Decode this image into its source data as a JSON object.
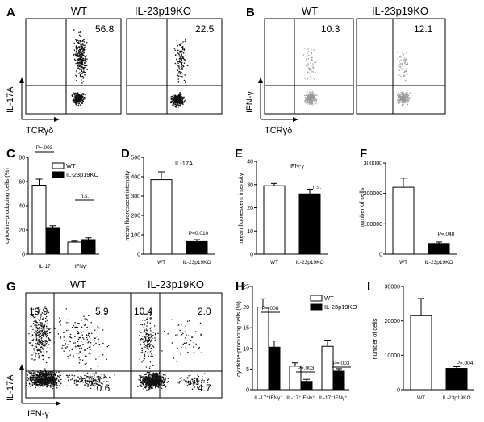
{
  "panels": {
    "A": {
      "label": "A",
      "titles": [
        "WT",
        "IL-23p19KO"
      ],
      "values": [
        "56.8",
        "22.5"
      ],
      "ylabel": "IL-17A",
      "xlabel": "TCRγδ"
    },
    "B": {
      "label": "B",
      "titles": [
        "WT",
        "IL-23p19KO"
      ],
      "values": [
        "10.3",
        "12.1"
      ],
      "ylabel": "IFN-γ",
      "xlabel": "TCRγδ"
    },
    "C": {
      "label": "C"
    },
    "D": {
      "label": "D"
    },
    "E": {
      "label": "E"
    },
    "F": {
      "label": "F"
    },
    "G": {
      "label": "G",
      "titles": [
        "WT",
        "IL-23p19KO"
      ],
      "wt": {
        "ul": "19.9",
        "ur": "5.9",
        "lr": "10.6"
      },
      "ko": {
        "ul": "10.4",
        "ur": "2.0",
        "lr": "4.7"
      },
      "ylabel": "IL-17A",
      "xlabel": "IFN-γ"
    },
    "H": {
      "label": "H"
    },
    "I": {
      "label": "I"
    }
  },
  "chart_data": [
    {
      "id": "C",
      "type": "bar",
      "ylabel": "cytokine-producing cells (%)",
      "ylim": [
        0,
        80
      ],
      "yticks": [
        0,
        20,
        40,
        60,
        80
      ],
      "categories": [
        "IL-17⁺",
        "IFNγ⁺"
      ],
      "series": [
        {
          "name": "WT",
          "color": "#ffffff",
          "values": [
            57,
            10
          ],
          "errors": [
            5,
            0.8
          ]
        },
        {
          "name": "IL-23p19KO",
          "color": "#000000",
          "values": [
            22,
            12
          ],
          "errors": [
            1.5,
            1.5
          ]
        }
      ],
      "annotations": [
        "P=.003",
        "n.s."
      ],
      "legend": "top-right"
    },
    {
      "id": "D",
      "type": "bar",
      "title": "IL-17A",
      "ylabel": "mean fluorescent intensity",
      "ylim": [
        0,
        500
      ],
      "yticks": [
        0,
        100,
        200,
        300,
        400,
        500
      ],
      "categories": [
        "WT",
        "IL-23p19KO"
      ],
      "series": [
        {
          "values": [
            385,
            65
          ],
          "errors": [
            40,
            10
          ],
          "colors": [
            "#ffffff",
            "#000000"
          ]
        }
      ],
      "annotations": [
        "P=0.010"
      ]
    },
    {
      "id": "E",
      "type": "bar",
      "title": "IFN-γ",
      "ylabel": "mean fluorescent intensity",
      "ylim": [
        0,
        40
      ],
      "yticks": [
        0,
        10,
        20,
        30,
        40
      ],
      "categories": [
        "WT",
        "IL-23p19KO"
      ],
      "series": [
        {
          "values": [
            29.5,
            26
          ],
          "errors": [
            1,
            2
          ],
          "colors": [
            "#ffffff",
            "#000000"
          ]
        }
      ],
      "annotations": [
        "n.s."
      ]
    },
    {
      "id": "F",
      "type": "bar",
      "ylabel": "number of cells",
      "ylim": [
        0,
        300000
      ],
      "yticks": [
        0,
        100000,
        200000,
        300000
      ],
      "categories": [
        "WT",
        "IL-23p19KO"
      ],
      "series": [
        {
          "values": [
            220000,
            35000
          ],
          "errors": [
            30000,
            5000
          ],
          "colors": [
            "#ffffff",
            "#000000"
          ]
        }
      ],
      "annotations": [
        "P=.048"
      ]
    },
    {
      "id": "H",
      "type": "bar",
      "ylabel": "cytokine-producing cells (%)",
      "ylim": [
        0,
        25
      ],
      "yticks": [
        0,
        5,
        10,
        15,
        20,
        25
      ],
      "categories": [
        "IL-17⁺IFNγ⁻",
        "IL-17⁺IFNγ⁺",
        "IL-17⁻IFNγ⁺"
      ],
      "series": [
        {
          "name": "WT",
          "color": "#ffffff",
          "values": [
            20,
            5.7,
            10.5
          ],
          "errors": [
            2,
            0.8,
            1.5
          ]
        },
        {
          "name": "IL-23p19KO",
          "color": "#000000",
          "values": [
            10.3,
            2,
            4.5
          ],
          "errors": [
            1.5,
            0.5,
            0.6
          ]
        }
      ],
      "annotations": [
        "P=.008",
        "P=.003",
        "P=.003"
      ],
      "legend": "top-right"
    },
    {
      "id": "I",
      "type": "bar",
      "ylabel": "number of cells",
      "ylim": [
        0,
        30000
      ],
      "yticks": [
        0,
        10000,
        20000,
        30000
      ],
      "categories": [
        "WT",
        "IL-23p19KO"
      ],
      "series": [
        {
          "values": [
            21500,
            6200
          ],
          "errors": [
            5000,
            500
          ],
          "colors": [
            "#ffffff",
            "#000000"
          ]
        }
      ],
      "annotations": [
        "P=.004"
      ]
    }
  ]
}
